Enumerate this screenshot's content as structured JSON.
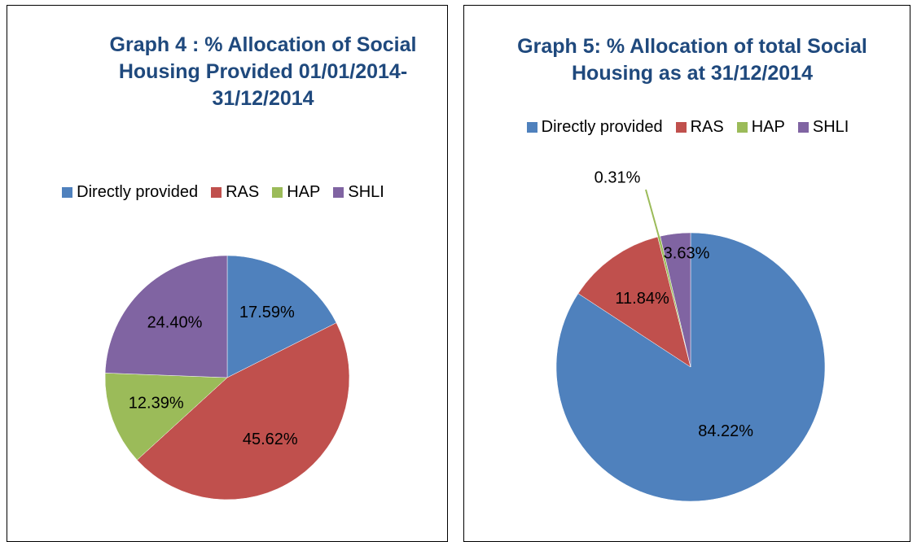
{
  "chart_data": [
    {
      "type": "pie",
      "title": "Graph 4 : % Allocation of Social Housing Provided 01/01/2014-31/12/2014",
      "categories": [
        "Directly provided",
        "RAS",
        "HAP",
        "SHLI"
      ],
      "values": [
        17.59,
        45.62,
        12.39,
        24.4
      ],
      "value_labels": [
        "17.59%",
        "45.62%",
        "12.39%",
        "24.40%"
      ],
      "colors": [
        "#4f81bd",
        "#c0504d",
        "#9bbb59",
        "#8064a2"
      ],
      "legend": "top"
    },
    {
      "type": "pie",
      "title": "Graph 5: % Allocation of total Social Housing as at 31/12/2014",
      "categories": [
        "Directly provided",
        "RAS",
        "HAP",
        "SHLI"
      ],
      "values": [
        84.22,
        11.84,
        0.31,
        3.63
      ],
      "value_labels": [
        "84.22%",
        "11.84%",
        "0.31%",
        "3.63%"
      ],
      "colors": [
        "#4f81bd",
        "#c0504d",
        "#9bbb59",
        "#8064a2"
      ],
      "legend": "top"
    }
  ]
}
